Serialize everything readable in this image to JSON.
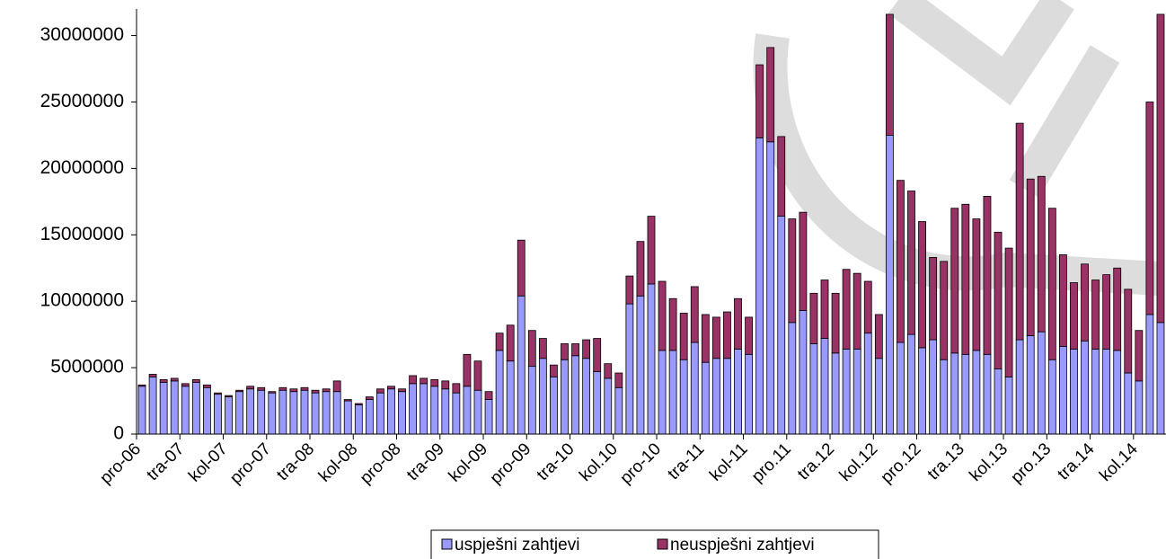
{
  "chart_data": {
    "type": "stacked-bar",
    "categories": [
      "pro-06",
      null,
      null,
      null,
      "tra-07",
      null,
      null,
      null,
      "kol-07",
      null,
      null,
      null,
      "pro-07",
      null,
      null,
      null,
      "tra-08",
      null,
      null,
      null,
      "kol-08",
      null,
      null,
      null,
      "pro-08",
      null,
      null,
      null,
      "tra-09",
      null,
      null,
      null,
      "kol-09",
      null,
      null,
      null,
      "pro-09",
      null,
      null,
      null,
      "tra-10",
      null,
      null,
      null,
      "kol.10",
      null,
      null,
      null,
      "pro-10",
      null,
      null,
      null,
      "tra-11",
      null,
      null,
      null,
      "kol-11",
      null,
      null,
      null,
      "pro.11",
      null,
      null,
      null,
      "tra.12",
      null,
      null,
      null,
      "kol.12",
      null,
      null,
      null,
      "pro.12",
      null,
      null,
      null,
      "tra.13",
      null,
      null,
      null,
      "kol.13",
      null,
      null,
      null,
      "pro.13",
      null,
      null,
      null,
      "tra.14",
      null,
      null,
      null,
      "kol.14",
      null,
      null
    ],
    "series": [
      {
        "name": "uspješni zahtjevi",
        "color": "#9999ff",
        "values": [
          3600000,
          4300000,
          3900000,
          4000000,
          3600000,
          3900000,
          3500000,
          3000000,
          2800000,
          3200000,
          3400000,
          3300000,
          3100000,
          3300000,
          3200000,
          3300000,
          3100000,
          3200000,
          3200000,
          2500000,
          2200000,
          2600000,
          3100000,
          3400000,
          3200000,
          3800000,
          3800000,
          3600000,
          3400000,
          3100000,
          3600000,
          3300000,
          2600000,
          6300000,
          5500000,
          10400000,
          5100000,
          5700000,
          4300000,
          5600000,
          5900000,
          5700000,
          4700000,
          4200000,
          3500000,
          9800000,
          10400000,
          11300000,
          6300000,
          6300000,
          5600000,
          6900000,
          5400000,
          5700000,
          5700000,
          6400000,
          6000000,
          22300000,
          22000000,
          16400000,
          8400000,
          9300000,
          6800000,
          7200000,
          6100000,
          6400000,
          6400000,
          7600000,
          5700000,
          22500000,
          6900000,
          7500000,
          6500000,
          7100000,
          5600000,
          6100000,
          6000000,
          6300000,
          6000000,
          4900000,
          4300000,
          7100000,
          7400000,
          7700000,
          5600000,
          6600000,
          6400000,
          7000000,
          6400000,
          6400000,
          6300000,
          4600000,
          4000000,
          9000000,
          8400000
        ]
      },
      {
        "name": "neuspješni zahtjevi",
        "color": "#993366",
        "values": [
          100000,
          200000,
          200000,
          200000,
          200000,
          200000,
          200000,
          100000,
          100000,
          100000,
          200000,
          200000,
          100000,
          200000,
          200000,
          200000,
          200000,
          200000,
          800000,
          100000,
          100000,
          200000,
          300000,
          200000,
          200000,
          600000,
          400000,
          500000,
          600000,
          700000,
          2400000,
          2200000,
          600000,
          1300000,
          2700000,
          4200000,
          2700000,
          1500000,
          900000,
          1200000,
          900000,
          1400000,
          2500000,
          1100000,
          1100000,
          2100000,
          4100000,
          5100000,
          5200000,
          3900000,
          3500000,
          4200000,
          3600000,
          3100000,
          3500000,
          3800000,
          2800000,
          5500000,
          7100000,
          6000000,
          7800000,
          7400000,
          3800000,
          4400000,
          4500000,
          6000000,
          5700000,
          3900000,
          3300000,
          9100000,
          12200000,
          10800000,
          9500000,
          6200000,
          7400000,
          10900000,
          11300000,
          9900000,
          11900000,
          10300000,
          9700000,
          16300000,
          11800000,
          11700000,
          11400000,
          6900000,
          5000000,
          5800000,
          5200000,
          5600000,
          6200000,
          6300000,
          3800000,
          16000000,
          23200000
        ]
      }
    ],
    "ylim": [
      0,
      32000000
    ],
    "yticks": [
      0,
      5000000,
      10000000,
      15000000,
      20000000,
      25000000,
      30000000
    ]
  }
}
